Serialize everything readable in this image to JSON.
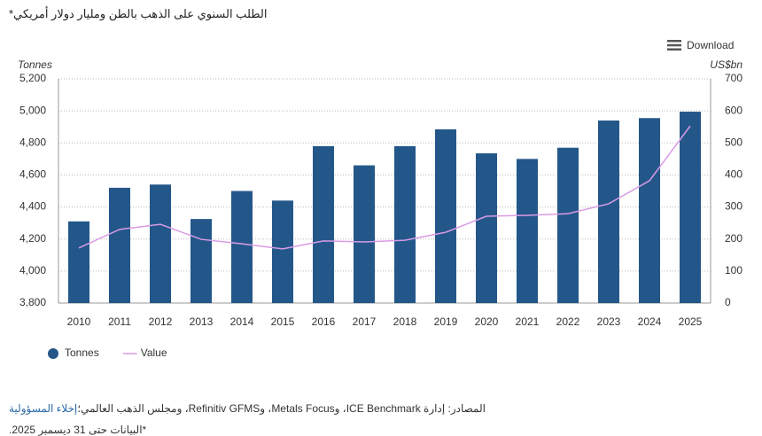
{
  "page": {
    "download": "Download",
    "disclaimer": "إخلاء المسؤولية",
    "sources": "المصادر: إدارة ICE Benchmark، وMetals Focus، وRefinitiv GFMS، ومجلس الذهب العالمي؛",
    "note": "*البيانات حتى 31 ديسمبر 2025."
  },
  "chart_data": {
    "type": "bar-line",
    "title": "الطلب السنوي على الذهب بالطن ومليار دولار أمريكي*",
    "y_label": "Tonnes",
    "y2_label": "US$bn",
    "categories": [
      "2010",
      "2011",
      "2012",
      "2013",
      "2014",
      "2015",
      "2016",
      "2017",
      "2018",
      "2019",
      "2020",
      "2021",
      "2022",
      "2023",
      "2024",
      "2025"
    ],
    "series": [
      {
        "name": "Tonnes",
        "type": "bar",
        "color": "#245789",
        "values": [
          4310,
          4520,
          4540,
          4325,
          4500,
          4440,
          4780,
          4660,
          4780,
          4885,
          4735,
          4700,
          4770,
          4940,
          4955,
          4995
        ]
      },
      {
        "name": "Value",
        "type": "line",
        "axis": "y2",
        "color": "#d99be6",
        "values": [
          172,
          230,
          246,
          199,
          185,
          169,
          194,
          191,
          196,
          221,
          271,
          274,
          279,
          310,
          382,
          553
        ]
      }
    ],
    "ylim": [
      3800,
      5200
    ],
    "yticks": [
      {
        "value": 3800,
        "label": "3,800"
      },
      {
        "value": 4000,
        "label": "4,000"
      },
      {
        "value": 4200,
        "label": "4,200"
      },
      {
        "value": 4400,
        "label": "4,400"
      },
      {
        "value": 4600,
        "label": "4,600"
      },
      {
        "value": 4800,
        "label": "4,800"
      },
      {
        "value": 5000,
        "label": "5,000"
      },
      {
        "value": 5200,
        "label": "5,200"
      }
    ],
    "y2lim": [
      0,
      700
    ],
    "y2ticks": [
      0,
      100,
      200,
      300,
      400,
      500,
      600,
      700
    ],
    "grid": true,
    "legend": "bottom-left"
  }
}
